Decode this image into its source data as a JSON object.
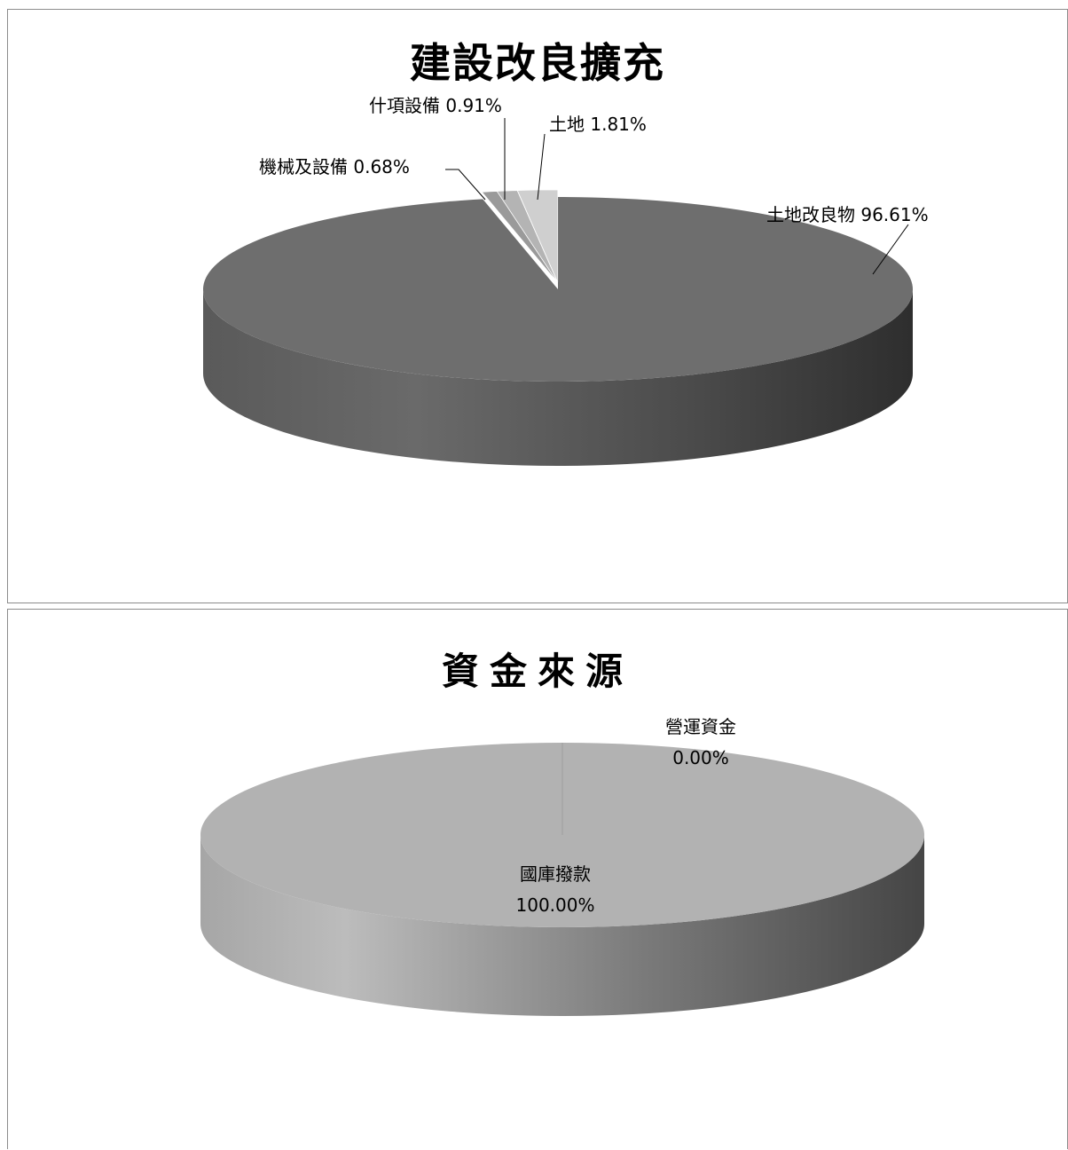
{
  "chart_data": [
    {
      "type": "pie",
      "title": "建設改良擴充",
      "slices": [
        {
          "name": "土地改良物",
          "value": 96.61,
          "label": "土地改良物 96.61%",
          "color": "#6e6e6e"
        },
        {
          "name": "土地",
          "value": 1.81,
          "label": "土地 1.81%",
          "color": "#cfcfcf"
        },
        {
          "name": "什項設備",
          "value": 0.91,
          "label": "什項設備 0.91%",
          "color": "#b4b4b4"
        },
        {
          "name": "機械及設備",
          "value": 0.68,
          "label": "機械及設備 0.68%",
          "color": "#9a9a9a"
        }
      ]
    },
    {
      "type": "pie",
      "title": "資金來源",
      "slices": [
        {
          "name": "國庫撥款",
          "value": 100.0,
          "label_name": "國庫撥款",
          "label_pct": "100.00%",
          "color": "#b2b2b2"
        },
        {
          "name": "營運資金",
          "value": 0.0,
          "label_name": "營運資金",
          "label_pct": "0.00%",
          "color": "#8a8a8a"
        }
      ]
    }
  ]
}
